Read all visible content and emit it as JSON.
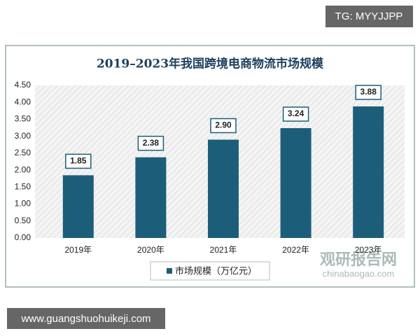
{
  "chart_data": {
    "type": "bar",
    "title": "2019–2023年我国跨境电商物流市场规模",
    "categories": [
      "2019年",
      "2020年",
      "2021年",
      "2022年",
      "2023年"
    ],
    "series": [
      {
        "name": "市场规模（万亿元）",
        "color": "#1c5e7a",
        "values": [
          1.85,
          2.38,
          2.9,
          3.24,
          3.88
        ],
        "value_labels": [
          "1.85",
          "2.38",
          "2.90",
          "3.24",
          "3.88"
        ]
      }
    ],
    "ylim": [
      0,
      4.5
    ],
    "yticks": [
      {
        "value": 0,
        "label": "0.00"
      },
      {
        "value": 0.5,
        "label": "0.50"
      },
      {
        "value": 1,
        "label": "1.00"
      },
      {
        "value": 1.5,
        "label": "1.50"
      },
      {
        "value": 2,
        "label": "2.00"
      },
      {
        "value": 2.5,
        "label": "2.50"
      },
      {
        "value": 3,
        "label": "3.00"
      },
      {
        "value": 3.5,
        "label": "3.50"
      },
      {
        "value": 4,
        "label": "4.00"
      },
      {
        "value": 4.5,
        "label": "4.50"
      }
    ],
    "grid": false,
    "legend": "bottom"
  },
  "watermarks": {
    "tag": "TG: MYYJJPP",
    "site": "www.guangshuohuikeji.com",
    "logo": "观研报告网",
    "logo_url": "chinabaogao.com"
  }
}
